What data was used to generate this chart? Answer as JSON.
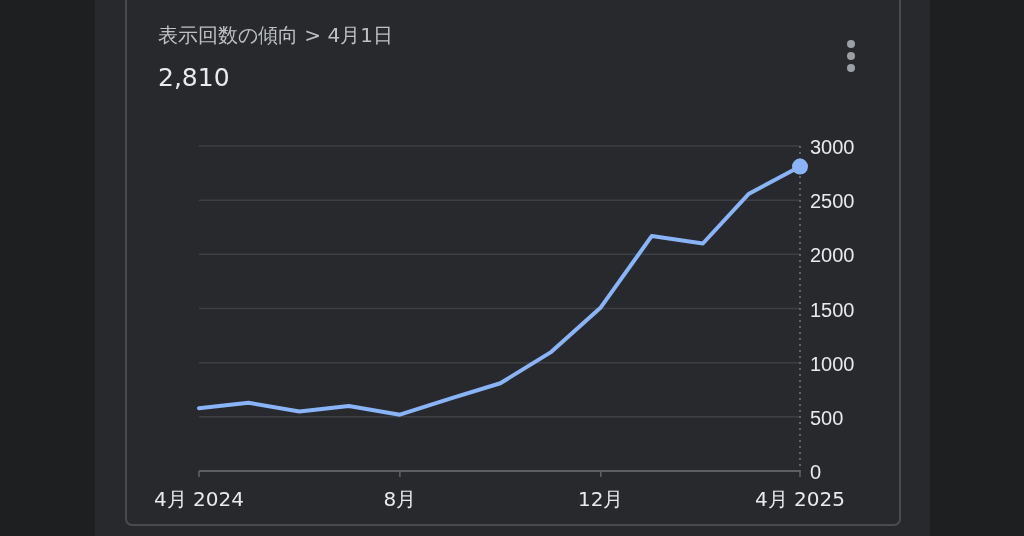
{
  "chart_data": {
    "type": "line",
    "title": "表示回数の傾向 > 4月1日",
    "subtitle": "2,810",
    "x": [
      "2024-04",
      "2024-05",
      "2024-06",
      "2024-07",
      "2024-08",
      "2024-09",
      "2024-10",
      "2024-11",
      "2024-12",
      "2025-01",
      "2025-02",
      "2025-03",
      "2025-04"
    ],
    "series": [
      {
        "color": "#8ab4f8",
        "values": [
          580,
          630,
          550,
          600,
          520,
          670,
          810,
          1100,
          1510,
          2170,
          2100,
          2560,
          2810
        ]
      },
      {
        "type": "scatter",
        "color": "#8ab4f8",
        "x": [
          "2025-04"
        ],
        "values": [
          2810
        ],
        "marker": "circle"
      }
    ],
    "xlim": [
      "2024-04",
      "2025-04"
    ],
    "xticks": [
      {
        "value": "2024-04",
        "label": "4月 2024"
      },
      {
        "value": "2024-08",
        "label": "8月"
      },
      {
        "value": "2024-12",
        "label": "12月"
      },
      {
        "value": "2025-04",
        "label": "4月 2025"
      }
    ],
    "ylim": [
      0,
      3000
    ],
    "yticks": [
      0,
      500,
      1000,
      1500,
      2000,
      2500,
      3000
    ],
    "ref_lines": [
      {
        "axis": "x",
        "value": "2025-04",
        "line_style": "dotted",
        "color": "#5f6368"
      }
    ],
    "grid": "y",
    "marker": "none",
    "line_style": "solid"
  }
}
